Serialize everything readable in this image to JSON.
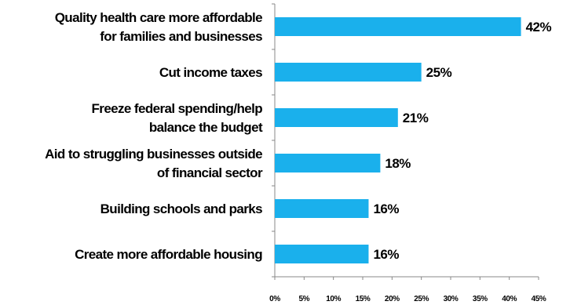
{
  "chart_data": {
    "type": "bar",
    "orientation": "horizontal",
    "title": "",
    "xlabel": "",
    "ylabel": "",
    "categories": [
      [
        "Quality health care more affordable",
        "for families and businesses"
      ],
      [
        "Cut income taxes"
      ],
      [
        "Freeze federal spending/help",
        "balance the budget"
      ],
      [
        "Aid to struggling businesses outside",
        "of financial sector"
      ],
      [
        "Building schools and parks"
      ],
      [
        "Create more affordable housing"
      ]
    ],
    "values": [
      42,
      25,
      21,
      18,
      16,
      16
    ],
    "data_labels": [
      "42%",
      "25%",
      "21%",
      "18%",
      "16%",
      "16%"
    ],
    "xlim": [
      0,
      45
    ],
    "x_ticks": [
      "0%",
      "5%",
      "10%",
      "15%",
      "20%",
      "25%",
      "30%",
      "35%",
      "40%",
      "45%"
    ],
    "bar_color": "#1ab0ec",
    "grid": false,
    "legend": "none"
  }
}
